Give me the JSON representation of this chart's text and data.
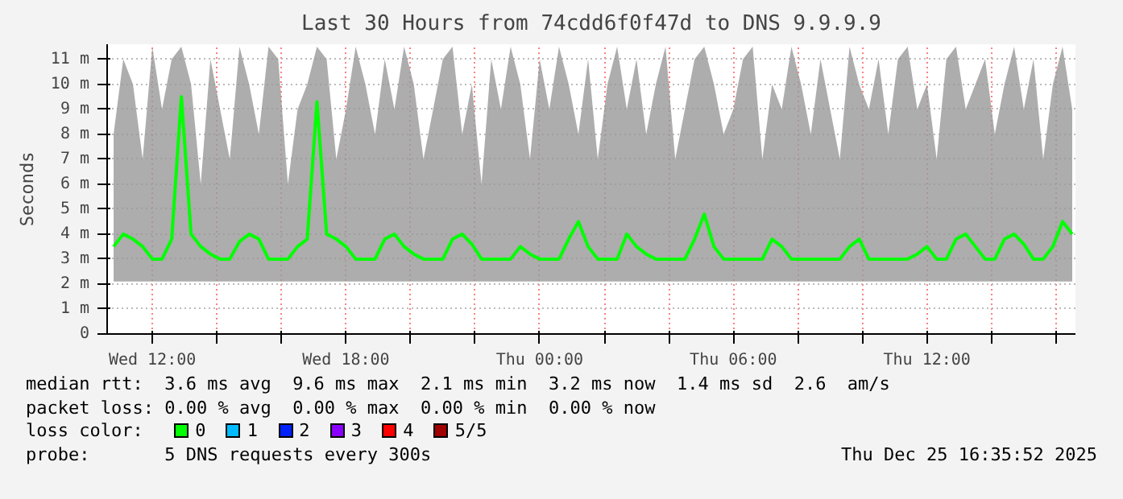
{
  "chart_data": {
    "type": "line",
    "title": "Last 30 Hours from 74cdd6f0f47d to DNS 9.9.9.9",
    "ylabel": "Seconds",
    "legend_title": "loss color:",
    "legend": "bottom",
    "grid": true,
    "xlim": [
      "2025-12-24T10:36",
      "2025-12-25T16:36"
    ],
    "xticks": [
      {
        "value": "2025-12-24T12:00",
        "label": "Wed 12:00"
      },
      {
        "value": "2025-12-24T14:00",
        "label": null
      },
      {
        "value": "2025-12-24T16:00",
        "label": null
      },
      {
        "value": "2025-12-24T18:00",
        "label": "Wed 18:00"
      },
      {
        "value": "2025-12-24T20:00",
        "label": null
      },
      {
        "value": "2025-12-24T22:00",
        "label": null
      },
      {
        "value": "2025-12-25T00:00",
        "label": "Thu 00:00"
      },
      {
        "value": "2025-12-25T02:00",
        "label": null
      },
      {
        "value": "2025-12-25T04:00",
        "label": null
      },
      {
        "value": "2025-12-25T06:00",
        "label": "Thu 06:00"
      },
      {
        "value": "2025-12-25T08:00",
        "label": null
      },
      {
        "value": "2025-12-25T10:00",
        "label": null
      },
      {
        "value": "2025-12-25T12:00",
        "label": "Thu 12:00"
      },
      {
        "value": "2025-12-25T14:00",
        "label": null
      },
      {
        "value": "2025-12-25T16:00",
        "label": null
      }
    ],
    "ylim": [
      0,
      11.6
    ],
    "yticks": [
      0,
      {
        "value": 1,
        "label": "1 m"
      },
      {
        "value": 2,
        "label": "2 m"
      },
      {
        "value": 3,
        "label": "3 m"
      },
      {
        "value": 4,
        "label": "4 m"
      },
      {
        "value": 5,
        "label": "5 m"
      },
      {
        "value": 6,
        "label": "6 m"
      },
      {
        "value": 7,
        "label": "7 m"
      },
      {
        "value": 8,
        "label": "8 m"
      },
      {
        "value": 9,
        "label": "9 m"
      },
      {
        "value": 10,
        "label": "10 m"
      },
      {
        "value": 11,
        "label": "11 m"
      }
    ],
    "x": [
      "2025-12-24T10:48",
      "2025-12-24T11:06",
      "2025-12-24T11:24",
      "2025-12-24T11:42",
      "2025-12-24T12:00",
      "2025-12-24T12:18",
      "2025-12-24T12:36",
      "2025-12-24T12:54",
      "2025-12-24T13:12",
      "2025-12-24T13:30",
      "2025-12-24T13:48",
      "2025-12-24T14:06",
      "2025-12-24T14:24",
      "2025-12-24T14:42",
      "2025-12-24T15:00",
      "2025-12-24T15:18",
      "2025-12-24T15:36",
      "2025-12-24T15:54",
      "2025-12-24T16:12",
      "2025-12-24T16:30",
      "2025-12-24T16:48",
      "2025-12-24T17:06",
      "2025-12-24T17:24",
      "2025-12-24T17:42",
      "2025-12-24T18:00",
      "2025-12-24T18:18",
      "2025-12-24T18:36",
      "2025-12-24T18:54",
      "2025-12-24T19:12",
      "2025-12-24T19:30",
      "2025-12-24T19:48",
      "2025-12-24T20:06",
      "2025-12-24T20:24",
      "2025-12-24T20:42",
      "2025-12-24T21:00",
      "2025-12-24T21:18",
      "2025-12-24T21:36",
      "2025-12-24T21:54",
      "2025-12-24T22:12",
      "2025-12-24T22:30",
      "2025-12-24T22:48",
      "2025-12-24T23:06",
      "2025-12-24T23:24",
      "2025-12-24T23:42",
      "2025-12-25T00:00",
      "2025-12-25T00:18",
      "2025-12-25T00:36",
      "2025-12-25T00:54",
      "2025-12-25T01:12",
      "2025-12-25T01:30",
      "2025-12-25T01:48",
      "2025-12-25T02:06",
      "2025-12-25T02:24",
      "2025-12-25T02:42",
      "2025-12-25T03:00",
      "2025-12-25T03:18",
      "2025-12-25T03:36",
      "2025-12-25T03:54",
      "2025-12-25T04:12",
      "2025-12-25T04:30",
      "2025-12-25T04:48",
      "2025-12-25T05:06",
      "2025-12-25T05:24",
      "2025-12-25T05:42",
      "2025-12-25T06:00",
      "2025-12-25T06:18",
      "2025-12-25T06:36",
      "2025-12-25T06:54",
      "2025-12-25T07:12",
      "2025-12-25T07:30",
      "2025-12-25T07:48",
      "2025-12-25T08:06",
      "2025-12-25T08:24",
      "2025-12-25T08:42",
      "2025-12-25T09:00",
      "2025-12-25T09:18",
      "2025-12-25T09:36",
      "2025-12-25T09:54",
      "2025-12-25T10:12",
      "2025-12-25T10:30",
      "2025-12-25T10:48",
      "2025-12-25T11:06",
      "2025-12-25T11:24",
      "2025-12-25T11:42",
      "2025-12-25T12:00",
      "2025-12-25T12:18",
      "2025-12-25T12:36",
      "2025-12-25T12:54",
      "2025-12-25T13:12",
      "2025-12-25T13:30",
      "2025-12-25T13:48",
      "2025-12-25T14:06",
      "2025-12-25T14:24",
      "2025-12-25T14:42",
      "2025-12-25T15:00",
      "2025-12-25T15:18",
      "2025-12-25T15:36",
      "2025-12-25T15:54",
      "2025-12-25T16:12",
      "2025-12-25T16:30"
    ],
    "series": [
      {
        "name": "0",
        "color": "#00ff00",
        "values": [
          3.5,
          4,
          3.8,
          3.5,
          3,
          3,
          3.8,
          9.5,
          4,
          3.5,
          3.2,
          3,
          3,
          3.7,
          4,
          3.8,
          3,
          3,
          3,
          3.5,
          3.8,
          9.3,
          4,
          3.8,
          3.5,
          3,
          3,
          3,
          3.8,
          4,
          3.5,
          3.2,
          3,
          3,
          3,
          3.8,
          4,
          3.6,
          3,
          3,
          3,
          3,
          3.5,
          3.2,
          3,
          3,
          3,
          3.8,
          4.5,
          3.5,
          3,
          3,
          3,
          4,
          3.5,
          3.2,
          3,
          3,
          3,
          3,
          3.8,
          4.8,
          3.5,
          3,
          3,
          3,
          3,
          3,
          3.8,
          3.5,
          3,
          3,
          3,
          3,
          3,
          3,
          3.5,
          3.8,
          3,
          3,
          3,
          3,
          3,
          3.2,
          3.5,
          3,
          3,
          3.8,
          4,
          3.5,
          3,
          3,
          3.8,
          4,
          3.6,
          3,
          3,
          3.5,
          4.5,
          4
        ],
        "lower": [
          2.1,
          2.1,
          2.1,
          2.1,
          2.1,
          2.1,
          2.1,
          2.1,
          2.1,
          2.1,
          2.1,
          2.1,
          2.1,
          2.1,
          2.1,
          2.1,
          2.1,
          2.1,
          2.1,
          2.1,
          2.1,
          2.1,
          2.1,
          2.1,
          2.1,
          2.1,
          2.1,
          2.1,
          2.1,
          2.1,
          2.1,
          2.1,
          2.1,
          2.1,
          2.1,
          2.1,
          2.1,
          2.1,
          2.1,
          2.1,
          2.1,
          2.1,
          2.1,
          2.1,
          2.1,
          2.1,
          2.1,
          2.1,
          2.1,
          2.1,
          2.1,
          2.1,
          2.1,
          2.1,
          2.1,
          2.1,
          2.1,
          2.1,
          2.1,
          2.1,
          2.1,
          2.1,
          2.1,
          2.1,
          2.1,
          2.1,
          2.1,
          2.1,
          2.1,
          2.1,
          2.1,
          2.1,
          2.1,
          2.1,
          2.1,
          2.1,
          2.1,
          2.1,
          2.1,
          2.1,
          2.1,
          2.1,
          2.1,
          2.1,
          2.1,
          2.1,
          2.1,
          2.1,
          2.1,
          2.1,
          2.1,
          2.1,
          2.1,
          2.1,
          2.1,
          2.1,
          2.1,
          2.1,
          2.1,
          2.1
        ],
        "upper": [
          8,
          11,
          10,
          7,
          11.5,
          9,
          11,
          11.5,
          10,
          6,
          11,
          9,
          7,
          11.5,
          10,
          8,
          11.5,
          11,
          6,
          9,
          10,
          11.5,
          11,
          7,
          9,
          11.5,
          10,
          8,
          11,
          9,
          11.5,
          10,
          7,
          9,
          11,
          11.5,
          8,
          10,
          6,
          11,
          9,
          11.5,
          10,
          7,
          11,
          9,
          11.5,
          10,
          8,
          11,
          7,
          10,
          11.5,
          9,
          11,
          8,
          10,
          11.5,
          7,
          9,
          11,
          11.5,
          10,
          8,
          9,
          11,
          11.5,
          7,
          10,
          9,
          11.5,
          10,
          8,
          11,
          9,
          7,
          11.5,
          10,
          9,
          11,
          8,
          11,
          11.5,
          9,
          10,
          7,
          11,
          11.5,
          9,
          10,
          11,
          8,
          10,
          11.5,
          9,
          11,
          7,
          10,
          11.5,
          9
        ]
      },
      {
        "name": "1",
        "color": "#00bbff",
        "values": [
          null,
          null,
          null,
          null,
          null,
          null,
          null,
          null,
          null,
          null,
          null,
          null,
          null,
          null,
          null,
          null,
          null,
          null,
          null,
          null,
          null,
          null,
          null,
          null,
          null,
          null,
          null,
          null,
          null,
          null,
          null,
          null,
          null,
          null,
          null,
          null,
          null,
          null,
          null,
          null,
          null,
          null,
          null,
          null,
          null,
          null,
          null,
          null,
          null,
          null,
          null,
          null,
          null,
          null,
          null,
          null,
          null,
          null,
          null,
          null,
          null,
          null,
          null,
          null,
          null,
          null,
          null,
          null,
          null,
          null,
          null,
          null,
          null,
          null,
          null,
          null,
          null,
          null,
          null,
          null,
          null,
          null,
          null,
          null,
          null,
          null,
          null,
          null,
          null,
          null,
          null,
          null,
          null,
          null,
          null,
          null,
          null,
          null,
          null,
          null
        ]
      },
      {
        "name": "2",
        "color": "#0022ff",
        "values": [
          null,
          null,
          null,
          null,
          null,
          null,
          null,
          null,
          null,
          null,
          null,
          null,
          null,
          null,
          null,
          null,
          null,
          null,
          null,
          null,
          null,
          null,
          null,
          null,
          null,
          null,
          null,
          null,
          null,
          null,
          null,
          null,
          null,
          null,
          null,
          null,
          null,
          null,
          null,
          null,
          null,
          null,
          null,
          null,
          null,
          null,
          null,
          null,
          null,
          null,
          null,
          null,
          null,
          null,
          null,
          null,
          null,
          null,
          null,
          null,
          null,
          null,
          null,
          null,
          null,
          null,
          null,
          null,
          null,
          null,
          null,
          null,
          null,
          null,
          null,
          null,
          null,
          null,
          null,
          null,
          null,
          null,
          null,
          null,
          null,
          null,
          null,
          null,
          null,
          null,
          null,
          null,
          null,
          null,
          null,
          null,
          null,
          null,
          null,
          null
        ]
      },
      {
        "name": "3",
        "color": "#8a00ff",
        "values": [
          null,
          null,
          null,
          null,
          null,
          null,
          null,
          null,
          null,
          null,
          null,
          null,
          null,
          null,
          null,
          null,
          null,
          null,
          null,
          null,
          null,
          null,
          null,
          null,
          null,
          null,
          null,
          null,
          null,
          null,
          null,
          null,
          null,
          null,
          null,
          null,
          null,
          null,
          null,
          null,
          null,
          null,
          null,
          null,
          null,
          null,
          null,
          null,
          null,
          null,
          null,
          null,
          null,
          null,
          null,
          null,
          null,
          null,
          null,
          null,
          null,
          null,
          null,
          null,
          null,
          null,
          null,
          null,
          null,
          null,
          null,
          null,
          null,
          null,
          null,
          null,
          null,
          null,
          null,
          null,
          null,
          null,
          null,
          null,
          null,
          null,
          null,
          null,
          null,
          null,
          null,
          null,
          null,
          null,
          null,
          null,
          null,
          null,
          null,
          null
        ]
      },
      {
        "name": "4",
        "color": "#ff0000",
        "values": [
          null,
          null,
          null,
          null,
          null,
          null,
          null,
          null,
          null,
          null,
          null,
          null,
          null,
          null,
          null,
          null,
          null,
          null,
          null,
          null,
          null,
          null,
          null,
          null,
          null,
          null,
          null,
          null,
          null,
          null,
          null,
          null,
          null,
          null,
          null,
          null,
          null,
          null,
          null,
          null,
          null,
          null,
          null,
          null,
          null,
          null,
          null,
          null,
          null,
          null,
          null,
          null,
          null,
          null,
          null,
          null,
          null,
          null,
          null,
          null,
          null,
          null,
          null,
          null,
          null,
          null,
          null,
          null,
          null,
          null,
          null,
          null,
          null,
          null,
          null,
          null,
          null,
          null,
          null,
          null,
          null,
          null,
          null,
          null,
          null,
          null,
          null,
          null,
          null,
          null,
          null,
          null,
          null,
          null,
          null,
          null,
          null,
          null,
          null,
          null
        ]
      },
      {
        "name": "5/5",
        "color": "#a00000",
        "values": [
          null,
          null,
          null,
          null,
          null,
          null,
          null,
          null,
          null,
          null,
          null,
          null,
          null,
          null,
          null,
          null,
          null,
          null,
          null,
          null,
          null,
          null,
          null,
          null,
          null,
          null,
          null,
          null,
          null,
          null,
          null,
          null,
          null,
          null,
          null,
          null,
          null,
          null,
          null,
          null,
          null,
          null,
          null,
          null,
          null,
          null,
          null,
          null,
          null,
          null,
          null,
          null,
          null,
          null,
          null,
          null,
          null,
          null,
          null,
          null,
          null,
          null,
          null,
          null,
          null,
          null,
          null,
          null,
          null,
          null,
          null,
          null,
          null,
          null,
          null,
          null,
          null,
          null,
          null,
          null,
          null,
          null,
          null,
          null,
          null,
          null,
          null,
          null,
          null,
          null,
          null,
          null,
          null,
          null,
          null,
          null,
          null,
          null,
          null,
          null
        ]
      }
    ],
    "annotations": [
      "median rtt:  3.6 ms avg  9.6 ms max  2.1 ms min  3.2 ms now  1.4 ms sd  2.6  am/s",
      "packet loss: 0.00 % avg  0.00 % max  0.00 % min  0.00 % now",
      "probe:       5 DNS requests every 300s",
      "Thu Dec 25 16:35:52 2025"
    ]
  }
}
